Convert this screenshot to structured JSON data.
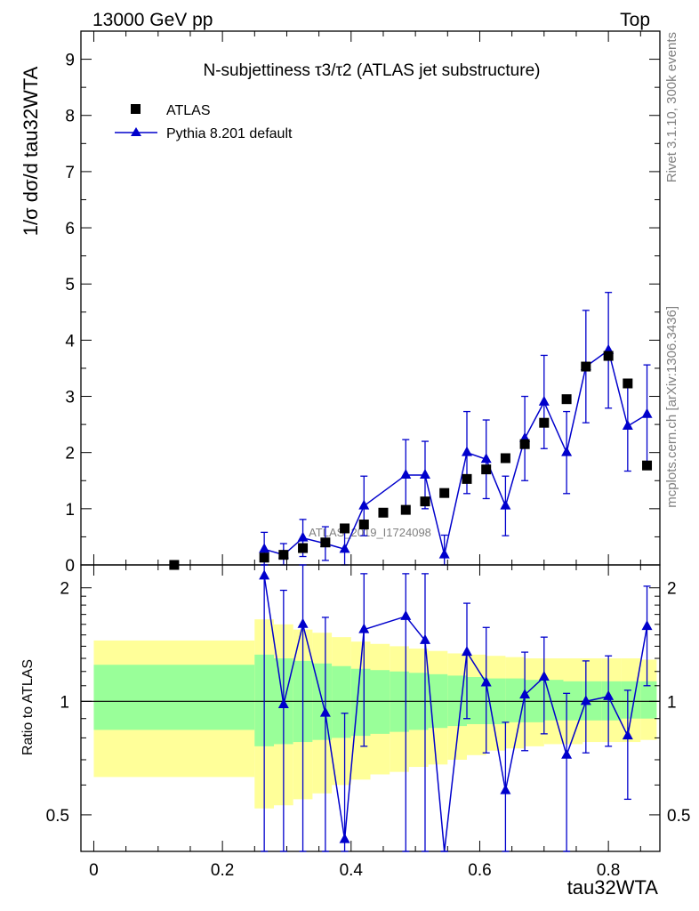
{
  "header": {
    "left": "13000 GeV pp",
    "right": "Top"
  },
  "side_labels": {
    "rivet": "Rivet 3.1.10,  300k events",
    "mcplots": "mcplots.cern.ch [arXiv:1306.3436]"
  },
  "watermark": "ATLAS_2019_I1724098",
  "chart_data": {
    "type": "scatter",
    "title": "N-subjettiness τ3/τ2 (ATLAS jet substructure)",
    "xlabel": "tau32WTA",
    "ylabel": "1/σ dσ/d tau32WTA",
    "xlim": [
      -0.02,
      0.88
    ],
    "ylim": [
      0,
      9.5
    ],
    "xticks": [
      "0",
      "0.2",
      "0.4",
      "0.6",
      "0.8"
    ],
    "yticks": [
      "0",
      "1",
      "2",
      "3",
      "4",
      "5",
      "6",
      "7",
      "8",
      "9"
    ],
    "legend": {
      "position": "top-left",
      "entries": [
        "ATLAS",
        "Pythia 8.201 default"
      ]
    },
    "series": [
      {
        "name": "ATLAS",
        "marker": "square",
        "color": "#000000",
        "x": [
          0.125,
          0.265,
          0.295,
          0.325,
          0.36,
          0.39,
          0.42,
          0.45,
          0.485,
          0.515,
          0.545,
          0.58,
          0.61,
          0.64,
          0.67,
          0.7,
          0.735,
          0.765,
          0.8,
          0.83,
          0.86
        ],
        "y": [
          0.0,
          0.13,
          0.18,
          0.3,
          0.4,
          0.65,
          0.72,
          0.93,
          0.98,
          1.13,
          1.28,
          1.53,
          1.7,
          1.9,
          2.15,
          2.53,
          2.95,
          3.53,
          3.72,
          3.23,
          1.77
        ]
      },
      {
        "name": "Pythia 8.201 default",
        "marker": "triangle",
        "color": "#0000cc",
        "x": [
          0.265,
          0.295,
          0.325,
          0.36,
          0.39,
          0.42,
          0.485,
          0.515,
          0.545,
          0.58,
          0.61,
          0.64,
          0.67,
          0.7,
          0.735,
          0.765,
          0.8,
          0.83,
          0.86
        ],
        "y": [
          0.28,
          0.18,
          0.48,
          0.38,
          0.28,
          1.05,
          1.6,
          1.6,
          0.18,
          2.0,
          1.88,
          1.05,
          2.25,
          2.9,
          2.0,
          3.53,
          3.82,
          2.47,
          2.68
        ],
        "err": [
          0.3,
          0.2,
          0.33,
          0.3,
          0.3,
          0.53,
          0.63,
          0.6,
          0.35,
          0.73,
          0.7,
          0.53,
          0.75,
          0.83,
          0.73,
          1.0,
          1.03,
          0.8,
          0.88
        ]
      }
    ],
    "ratio": {
      "ylabel": "Ratio to ATLAS",
      "ylim": [
        0.4,
        2.3
      ],
      "log_scale": true,
      "yticks": [
        "0.5",
        "1",
        "2"
      ],
      "reference": 1,
      "band_edges": [
        0.0,
        0.25,
        0.28,
        0.31,
        0.34,
        0.37,
        0.4,
        0.43,
        0.46,
        0.49,
        0.52,
        0.55,
        0.58,
        0.61,
        0.64,
        0.67,
        0.7,
        0.73,
        0.76,
        0.79,
        0.82,
        0.85,
        0.875
      ],
      "yellow_low": [
        0.63,
        0.52,
        0.53,
        0.55,
        0.57,
        0.6,
        0.62,
        0.64,
        0.65,
        0.67,
        0.68,
        0.7,
        0.72,
        0.74,
        0.75,
        0.76,
        0.77,
        0.77,
        0.78,
        0.78,
        0.78,
        0.79
      ],
      "yellow_high": [
        1.45,
        1.65,
        1.6,
        1.55,
        1.52,
        1.48,
        1.44,
        1.42,
        1.4,
        1.38,
        1.36,
        1.34,
        1.33,
        1.32,
        1.31,
        1.3,
        1.3,
        1.3,
        1.3,
        1.3,
        1.3,
        1.29
      ],
      "green_low": [
        0.84,
        0.76,
        0.77,
        0.78,
        0.79,
        0.8,
        0.81,
        0.82,
        0.83,
        0.84,
        0.85,
        0.86,
        0.87,
        0.87,
        0.88,
        0.88,
        0.89,
        0.89,
        0.89,
        0.89,
        0.9,
        0.9
      ],
      "green_high": [
        1.25,
        1.33,
        1.3,
        1.28,
        1.26,
        1.24,
        1.22,
        1.21,
        1.2,
        1.19,
        1.18,
        1.17,
        1.16,
        1.15,
        1.15,
        1.14,
        1.14,
        1.13,
        1.13,
        1.13,
        1.13,
        1.13
      ],
      "points": {
        "x": [
          0.265,
          0.295,
          0.325,
          0.36,
          0.39,
          0.42,
          0.485,
          0.515,
          0.545,
          0.58,
          0.61,
          0.64,
          0.67,
          0.7,
          0.735,
          0.765,
          0.8,
          0.83,
          0.86
        ],
        "y": [
          2.15,
          0.98,
          1.6,
          0.93,
          0.43,
          1.55,
          1.68,
          1.45,
          0.3,
          1.35,
          1.12,
          0.58,
          1.04,
          1.16,
          0.72,
          1.0,
          1.03,
          0.81,
          1.58
        ],
        "low": [
          0.3,
          0.3,
          0.38,
          0.38,
          0.38,
          0.76,
          0.38,
          0.38,
          0.3,
          0.9,
          0.73,
          0.32,
          0.74,
          0.82,
          0.39,
          0.73,
          0.76,
          0.55,
          1.1
        ],
        "high": [
          2.3,
          1.97,
          2.3,
          1.67,
          0.93,
          2.18,
          2.18,
          2.18,
          0.4,
          1.82,
          1.57,
          0.88,
          1.35,
          1.48,
          1.05,
          1.28,
          1.32,
          1.07,
          2.02
        ]
      }
    }
  }
}
